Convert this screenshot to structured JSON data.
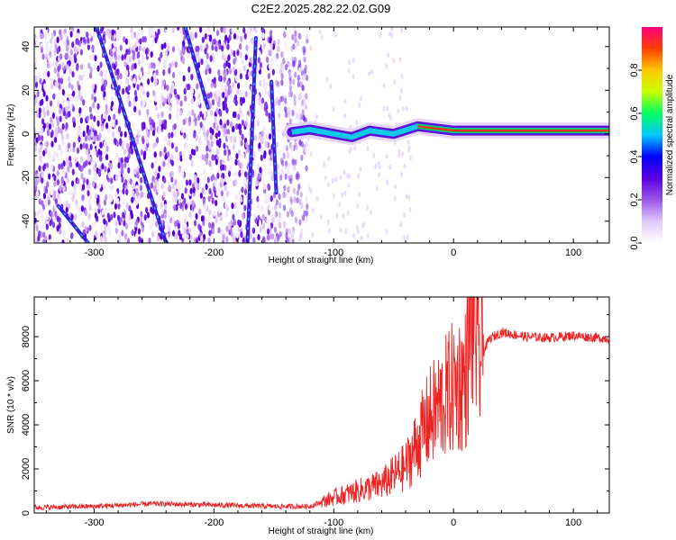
{
  "title": "C2E2.2025.282.22.02.G09",
  "chart_data": [
    {
      "type": "heatmap",
      "xlabel": "Height of straight line (km)",
      "ylabel": "Frequency (Hz)",
      "xlim": [
        -350,
        130
      ],
      "ylim": [
        -50,
        49
      ],
      "xticks": [
        -300,
        -200,
        -100,
        0,
        100
      ],
      "yticks": [
        -40,
        -20,
        0,
        20,
        40
      ],
      "colorbar": {
        "label": "Normalized spectral amplitude",
        "range": [
          0.0,
          1.0
        ],
        "ticks": [
          0.0,
          0.2,
          0.4,
          0.6,
          0.8
        ],
        "tick_labels": [
          "0.0",
          "0.2",
          "0.4",
          "0.6",
          "0.8"
        ],
        "colors": [
          "#ffffff",
          "#e0c8f8",
          "#9a55e8",
          "#5a00e0",
          "#0000ff",
          "#00c8ff",
          "#00ff60",
          "#c8ff00",
          "#ffc800",
          "#ff4000",
          "#ff0080"
        ]
      },
      "noise_region_x": [
        -350,
        -130
      ],
      "tracks": [
        {
          "name": "main-signal",
          "points": [
            [
              -135,
              0.8
            ],
            [
              -120,
              2.0
            ],
            [
              -100,
              0.0
            ],
            [
              -85,
              -1.5
            ],
            [
              -70,
              1.5
            ],
            [
              -50,
              0.0
            ],
            [
              -30,
              3.5
            ],
            [
              0,
              1.5
            ],
            [
              50,
              1.5
            ],
            [
              130,
              1.5
            ]
          ]
        },
        {
          "name": "streak-1",
          "points": [
            [
              -298,
              49
            ],
            [
              -240,
              -50
            ]
          ]
        },
        {
          "name": "streak-2",
          "points": [
            [
              -224,
              49
            ],
            [
              -205,
              12
            ]
          ]
        },
        {
          "name": "streak-3",
          "points": [
            [
              -165,
              44
            ],
            [
              -172,
              -50
            ]
          ]
        },
        {
          "name": "streak-4",
          "points": [
            [
              -330,
              -33
            ],
            [
              -305,
              -50
            ]
          ]
        },
        {
          "name": "streak-5",
          "points": [
            [
              -152,
              24
            ],
            [
              -148,
              -27
            ]
          ]
        }
      ]
    },
    {
      "type": "line",
      "xlabel": "Height of straight line (km)",
      "ylabel": "SNR (10 * v/v)",
      "xlim": [
        -350,
        130
      ],
      "ylim": [
        0,
        9800
      ],
      "xticks": [
        -300,
        -200,
        -100,
        0,
        100
      ],
      "yticks": [
        0,
        2000,
        4000,
        6000,
        8000
      ],
      "color": "#ee2222",
      "series": [
        {
          "name": "SNR",
          "x": [
            -350,
            -300,
            -250,
            -200,
            -150,
            -120,
            -100,
            -80,
            -60,
            -50,
            -40,
            -30,
            -20,
            -10,
            0,
            10,
            17,
            20,
            25,
            30,
            40,
            60,
            80,
            100,
            130
          ],
          "y": [
            250,
            300,
            420,
            360,
            300,
            300,
            700,
            1000,
            1300,
            1700,
            2100,
            3200,
            4300,
            5000,
            5700,
            6100,
            9800,
            6800,
            7300,
            7900,
            8200,
            8000,
            7950,
            8050,
            7900
          ]
        }
      ]
    }
  ]
}
